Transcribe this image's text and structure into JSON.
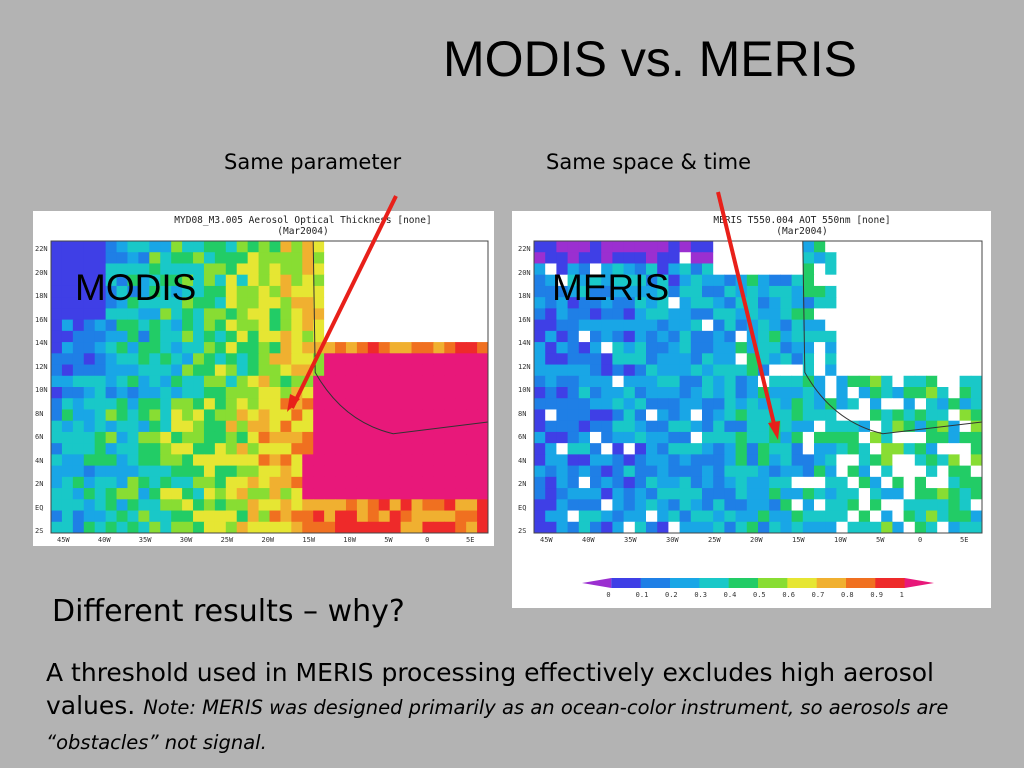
{
  "slide": {
    "title": "MODIS vs. MERIS",
    "callout_left": "Same parameter",
    "callout_right": "Same space & time",
    "question": "Different results – why?",
    "body_main": "A threshold used in MERIS processing effectively excludes high aerosol values.",
    "body_note": "Note: MERIS was designed primarily as an ocean-color instrument, so aerosols are “obstacles” not signal."
  },
  "maps": {
    "modis": {
      "label": "MODIS",
      "title_line1": "MYD08_M3.005 Aerosol Optical Thickness [none]",
      "title_line2": "(Mar2004)"
    },
    "meris": {
      "label": "MERIS",
      "title_line1": "MERIS T550.004 AOT 550nm [none]",
      "title_line2": "(Mar2004)"
    },
    "lat_ticks": [
      "22N",
      "20N",
      "18N",
      "16N",
      "14N",
      "12N",
      "10N",
      "8N",
      "6N",
      "4N",
      "2N",
      "EQ",
      "2S"
    ],
    "lon_ticks": [
      "45W",
      "40W",
      "35W",
      "30W",
      "25W",
      "20W",
      "15W",
      "10W",
      "5W",
      "0",
      "5E"
    ]
  },
  "colorbar": {
    "ticks": [
      "0",
      "0.1",
      "0.2",
      "0.3",
      "0.4",
      "0.5",
      "0.6",
      "0.7",
      "0.8",
      "0.9",
      "1"
    ],
    "colors": [
      "#9b2fd0",
      "#3f3fe6",
      "#1f7fe6",
      "#19a6e6",
      "#19c8c8",
      "#22cc66",
      "#88dd33",
      "#e6e633",
      "#f0b030",
      "#f07020",
      "#ee2a2a",
      "#e8187a"
    ]
  },
  "colors": {
    "arrow": "#e8201a"
  }
}
